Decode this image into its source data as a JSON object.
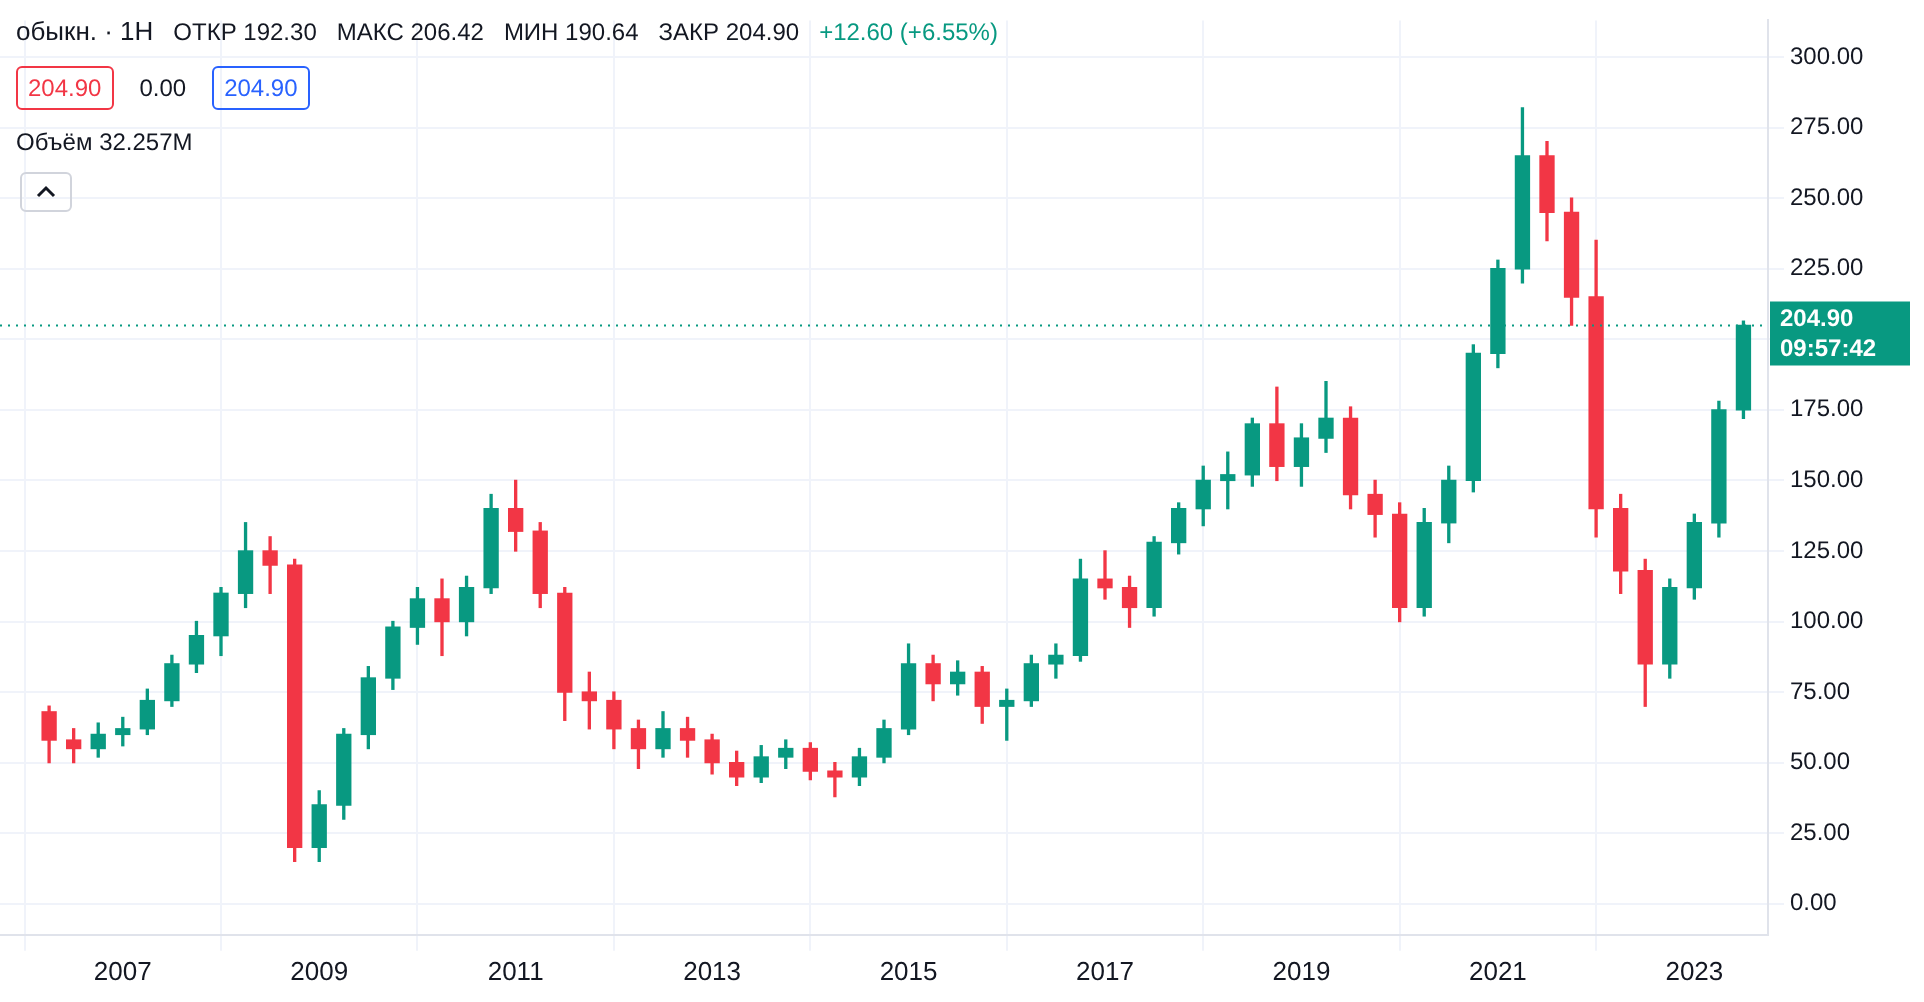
{
  "chart_data": {
    "type": "candlestick",
    "title": "обыкн. · 1H",
    "annotations": [
      "ОТКР 192.30",
      "МАКС 206.42",
      "МИН 190.64",
      "ЗАКР 204.90",
      "+12.60 (+6.55%)",
      "204.90",
      "0.00",
      "204.90",
      "Объём 32.257M"
    ],
    "x": [
      "2006-04",
      "2006-07",
      "2006-10",
      "2007-01",
      "2007-04",
      "2007-07",
      "2007-10",
      "2008-01",
      "2008-04",
      "2008-07",
      "2008-10",
      "2009-01",
      "2009-04",
      "2009-07",
      "2009-10",
      "2010-01",
      "2010-04",
      "2010-07",
      "2010-10",
      "2011-01",
      "2011-04",
      "2011-07",
      "2011-10",
      "2012-01",
      "2012-04",
      "2012-07",
      "2012-10",
      "2013-01",
      "2013-04",
      "2013-07",
      "2013-10",
      "2014-01",
      "2014-04",
      "2014-07",
      "2014-10",
      "2015-01",
      "2015-04",
      "2015-07",
      "2015-10",
      "2016-01",
      "2016-04",
      "2016-07",
      "2016-10",
      "2017-01",
      "2017-04",
      "2017-07",
      "2017-10",
      "2018-01",
      "2018-04",
      "2018-07",
      "2018-10",
      "2019-01",
      "2019-04",
      "2019-07",
      "2019-10",
      "2020-01",
      "2020-04",
      "2020-07",
      "2020-10",
      "2021-01",
      "2021-04",
      "2021-07",
      "2021-10",
      "2022-01",
      "2022-04",
      "2022-07",
      "2022-10",
      "2023-01",
      "2023-04",
      "2023-07"
    ],
    "ohlc": [
      [
        68,
        70,
        50,
        58
      ],
      [
        58,
        62,
        50,
        55
      ],
      [
        55,
        64,
        52,
        60
      ],
      [
        60,
        66,
        56,
        62
      ],
      [
        62,
        76,
        60,
        72
      ],
      [
        72,
        88,
        70,
        85
      ],
      [
        85,
        100,
        82,
        95
      ],
      [
        95,
        112,
        88,
        110
      ],
      [
        110,
        135,
        105,
        125
      ],
      [
        125,
        130,
        110,
        120
      ],
      [
        120,
        122,
        15,
        20
      ],
      [
        20,
        40,
        15,
        35
      ],
      [
        35,
        62,
        30,
        60
      ],
      [
        60,
        84,
        55,
        80
      ],
      [
        80,
        100,
        76,
        98
      ],
      [
        98,
        112,
        92,
        108
      ],
      [
        108,
        115,
        88,
        100
      ],
      [
        100,
        116,
        95,
        112
      ],
      [
        112,
        145,
        110,
        140
      ],
      [
        140,
        150,
        125,
        132
      ],
      [
        132,
        135,
        105,
        110
      ],
      [
        110,
        112,
        65,
        75
      ],
      [
        75,
        82,
        62,
        72
      ],
      [
        72,
        75,
        55,
        62
      ],
      [
        62,
        65,
        48,
        55
      ],
      [
        55,
        68,
        52,
        62
      ],
      [
        62,
        66,
        52,
        58
      ],
      [
        58,
        60,
        46,
        50
      ],
      [
        50,
        54,
        42,
        45
      ],
      [
        45,
        56,
        43,
        52
      ],
      [
        52,
        58,
        48,
        55
      ],
      [
        55,
        57,
        44,
        47
      ],
      [
        47,
        50,
        38,
        45
      ],
      [
        45,
        55,
        42,
        52
      ],
      [
        52,
        65,
        50,
        62
      ],
      [
        62,
        92,
        60,
        85
      ],
      [
        85,
        88,
        72,
        78
      ],
      [
        78,
        86,
        74,
        82
      ],
      [
        82,
        84,
        64,
        70
      ],
      [
        70,
        76,
        58,
        72
      ],
      [
        72,
        88,
        70,
        85
      ],
      [
        85,
        92,
        80,
        88
      ],
      [
        88,
        122,
        86,
        115
      ],
      [
        115,
        125,
        108,
        112
      ],
      [
        112,
        116,
        98,
        105
      ],
      [
        105,
        130,
        102,
        128
      ],
      [
        128,
        142,
        124,
        140
      ],
      [
        140,
        155,
        134,
        150
      ],
      [
        150,
        160,
        140,
        152
      ],
      [
        152,
        172,
        148,
        170
      ],
      [
        170,
        183,
        150,
        155
      ],
      [
        155,
        170,
        148,
        165
      ],
      [
        165,
        185,
        160,
        172
      ],
      [
        172,
        176,
        140,
        145
      ],
      [
        145,
        150,
        130,
        138
      ],
      [
        138,
        142,
        100,
        105
      ],
      [
        105,
        140,
        102,
        135
      ],
      [
        135,
        155,
        128,
        150
      ],
      [
        150,
        198,
        146,
        195
      ],
      [
        195,
        228,
        190,
        225
      ],
      [
        225,
        282,
        220,
        265
      ],
      [
        265,
        270,
        235,
        245
      ],
      [
        245,
        250,
        205,
        215
      ],
      [
        215,
        235,
        130,
        140
      ],
      [
        140,
        145,
        110,
        118
      ],
      [
        118,
        122,
        70,
        85
      ],
      [
        85,
        115,
        80,
        112
      ],
      [
        112,
        138,
        108,
        135
      ],
      [
        135,
        178,
        130,
        175
      ],
      [
        175,
        206.42,
        172,
        204.9
      ]
    ],
    "colors": [
      "#f23645",
      "#f23645",
      "#089981",
      "#089981",
      "#089981",
      "#089981",
      "#089981",
      "#089981",
      "#089981",
      "#f23645",
      "#f23645",
      "#089981",
      "#089981",
      "#089981",
      "#089981",
      "#089981",
      "#f23645",
      "#089981",
      "#089981",
      "#f23645",
      "#f23645",
      "#f23645",
      "#f23645",
      "#f23645",
      "#f23645",
      "#089981",
      "#f23645",
      "#f23645",
      "#f23645",
      "#089981",
      "#089981",
      "#f23645",
      "#f23645",
      "#089981",
      "#089981",
      "#089981",
      "#f23645",
      "#089981",
      "#f23645",
      "#089981",
      "#089981",
      "#089981",
      "#089981",
      "#f23645",
      "#f23645",
      "#089981",
      "#089981",
      "#089981",
      "#089981",
      "#089981",
      "#f23645",
      "#089981",
      "#089981",
      "#f23645",
      "#f23645",
      "#f23645",
      "#089981",
      "#089981",
      "#089981",
      "#089981",
      "#089981",
      "#f23645",
      "#f23645",
      "#f23645",
      "#f23645",
      "#f23645",
      "#089981",
      "#089981",
      "#089981",
      "#089981"
    ],
    "xlim": [
      "2005-10",
      "2023-10"
    ],
    "xticks": [
      "2007",
      "2009",
      "2011",
      "2013",
      "2015",
      "2017",
      "2019",
      "2021",
      "2023"
    ],
    "ylim": [
      -11,
      313
    ],
    "yticks": [
      {
        "value": 0,
        "label": "0.00"
      },
      {
        "value": 25,
        "label": "25.00"
      },
      {
        "value": 50,
        "label": "50.00"
      },
      {
        "value": 75,
        "label": "75.00"
      },
      {
        "value": 100,
        "label": "100.00"
      },
      {
        "value": 125,
        "label": "125.00"
      },
      {
        "value": 150,
        "label": "150.00"
      },
      {
        "value": 175,
        "label": "175.00"
      },
      {
        "value": 200,
        "label": null
      },
      {
        "value": 225,
        "label": "225.00"
      },
      {
        "value": 250,
        "label": "250.00"
      },
      {
        "value": 275,
        "label": "275.00"
      },
      {
        "value": 300,
        "label": "300.00"
      }
    ],
    "ref_lines": [
      {
        "axis": "y",
        "value": 204.9,
        "label": "204.90 09:57:42",
        "color": "#089981",
        "line_style": "dotted"
      }
    ],
    "grid": true,
    "legend": false
  }
}
